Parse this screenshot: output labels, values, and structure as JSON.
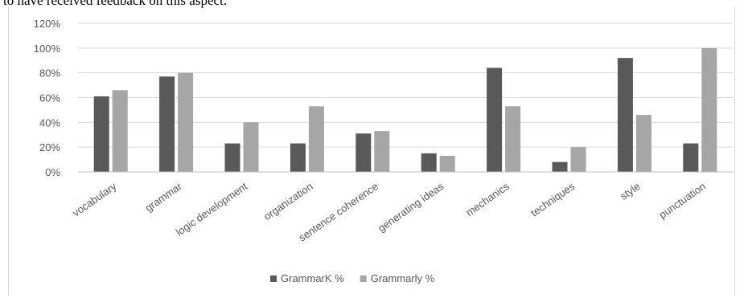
{
  "caption": "to have received feedback on this aspect.",
  "chart_data": {
    "type": "bar",
    "categories": [
      "vocabulary",
      "grammar",
      "logic development",
      "organization",
      "sentence coherence",
      "generating ideas",
      "mechanics",
      "techniques",
      "style",
      "punctuation"
    ],
    "series": [
      {
        "name": "GrammarK %",
        "values": [
          61,
          77,
          23,
          23,
          31,
          15,
          84,
          8,
          92,
          23
        ],
        "color": "#595959"
      },
      {
        "name": "Grammarly %",
        "values": [
          66,
          80,
          40,
          53,
          33,
          13,
          53,
          20,
          46,
          100
        ],
        "color": "#a6a6a6"
      }
    ],
    "y_ticks": [
      "0%",
      "20%",
      "40%",
      "60%",
      "80%",
      "100%",
      "120%"
    ],
    "ylim": [
      0,
      120
    ],
    "grid": true,
    "legend": "bottom"
  }
}
